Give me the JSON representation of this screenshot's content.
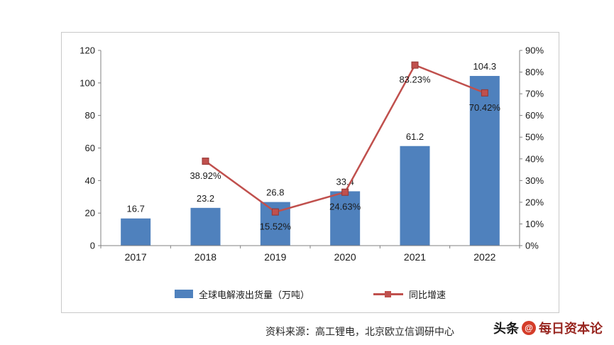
{
  "chart_data": {
    "type": "bar+line",
    "title": "",
    "categories": [
      "2017",
      "2018",
      "2019",
      "2020",
      "2021",
      "2022"
    ],
    "series": [
      {
        "name": "全球电解液出货量（万吨）",
        "type": "bar",
        "axis": "left",
        "color": "#4f81bd",
        "values": [
          16.7,
          23.2,
          26.8,
          33.4,
          61.2,
          104.3
        ],
        "data_labels": [
          "16.7",
          "23.2",
          "26.8",
          "33.4",
          "61.2",
          "104.3"
        ]
      },
      {
        "name": "同比增速",
        "type": "line",
        "axis": "right",
        "color": "#c0504d",
        "marker": "square",
        "values": [
          null,
          38.92,
          15.52,
          24.63,
          83.23,
          70.42
        ],
        "data_labels": [
          "",
          "38.92%",
          "15.52%",
          "24.63%",
          "83.23%",
          "70.42%"
        ]
      }
    ],
    "left_axis": {
      "min": 0,
      "max": 120,
      "step": 20,
      "tick_labels": [
        "0",
        "20",
        "40",
        "60",
        "80",
        "100",
        "120"
      ]
    },
    "right_axis": {
      "min": 0,
      "max": 90,
      "step": 10,
      "tick_labels": [
        "0%",
        "10%",
        "20%",
        "30%",
        "40%",
        "50%",
        "60%",
        "70%",
        "80%",
        "90%"
      ]
    },
    "grid": false,
    "legend_position": "bottom",
    "axis_color": "#808080",
    "label_color": "#1a1a1a"
  },
  "footer": {
    "source": "资料来源：高工锂电，北京欧立信调研中心"
  },
  "watermark": {
    "prefix": "头条",
    "badge": "@",
    "name": "每日资本论",
    "prefix_color": "#1a1a1a",
    "badge_color": "#d43d2a",
    "name_color": "#982620"
  }
}
